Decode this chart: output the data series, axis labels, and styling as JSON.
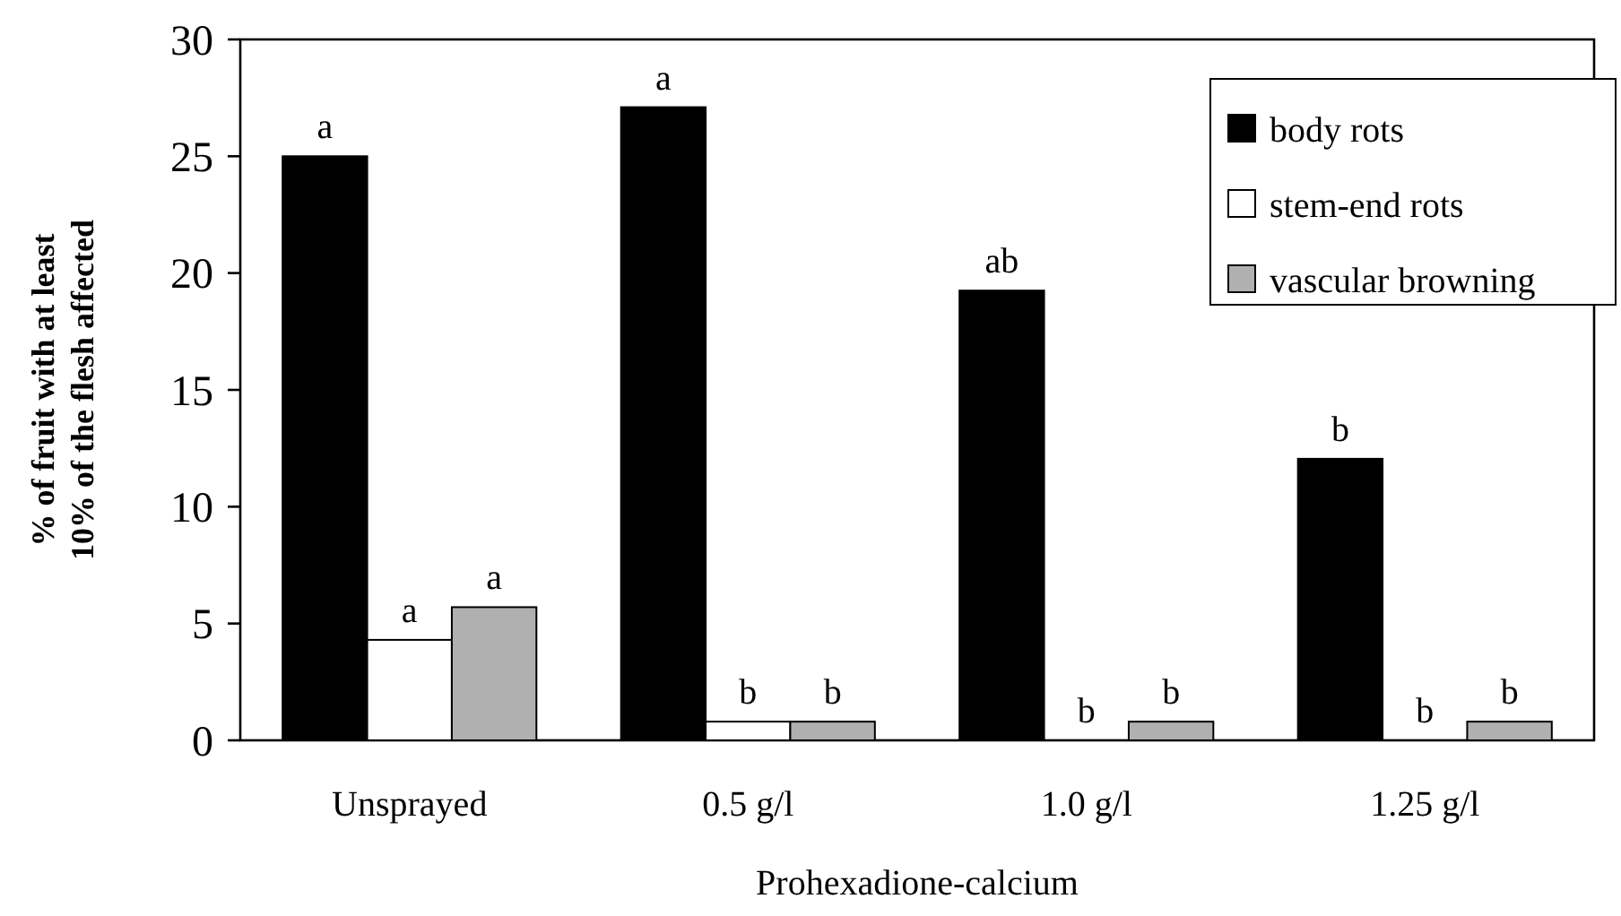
{
  "chart_data": {
    "type": "bar",
    "xlabel": "Prohexadione-calcium",
    "ylabel": "% of fruit with at least\n10% of the flesh affected",
    "categories": [
      "Unsprayed",
      "0.5 g/l",
      "1.0 g/l",
      "1.25 g/l"
    ],
    "series": [
      {
        "name": "body rots",
        "color": "#000000",
        "values": [
          25,
          27.1,
          19.25,
          12.05
        ],
        "value_labels": [
          "a",
          "a",
          "ab",
          "b"
        ]
      },
      {
        "name": "stem-end rots",
        "color": "#ffffff",
        "values": [
          4.3,
          0.8,
          0,
          0
        ],
        "value_labels": [
          "a",
          "b",
          "b",
          "b"
        ]
      },
      {
        "name": "vascular browning",
        "color": "#b0b0b0",
        "values": [
          5.7,
          0.8,
          0.8,
          0.8
        ],
        "value_labels": [
          "a",
          "b",
          "b",
          "b"
        ]
      }
    ],
    "ylim": [
      0,
      30
    ],
    "yticks": [
      0,
      5,
      10,
      15,
      20,
      25,
      30
    ],
    "grid": false,
    "legend": "top right"
  }
}
